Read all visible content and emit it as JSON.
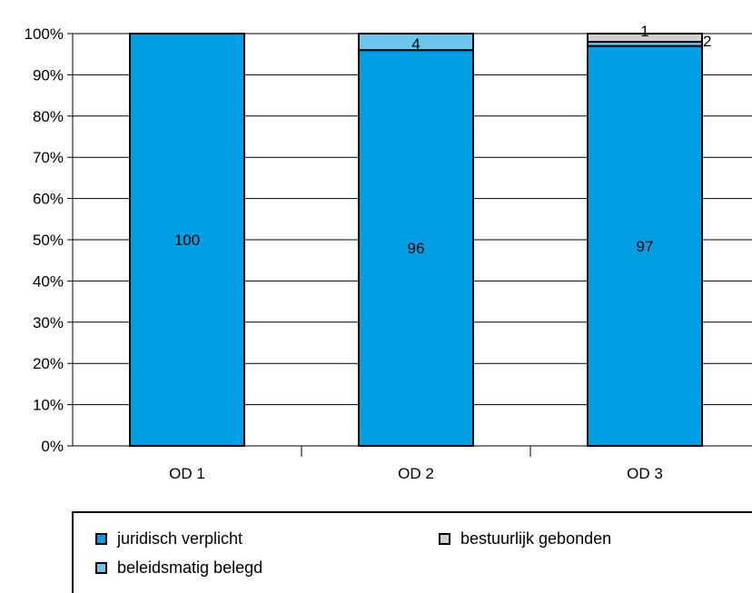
{
  "chart_data": {
    "type": "bar",
    "stacked": true,
    "categories": [
      "OD 1",
      "OD 2",
      "OD 3"
    ],
    "series": [
      {
        "name": "juridisch verplicht",
        "values": [
          100,
          96,
          97
        ],
        "color": "#009fe3"
      },
      {
        "name": "beleidsmatig belegd",
        "values": [
          0,
          4,
          1
        ],
        "color": "#6ec6ee"
      },
      {
        "name": "bestuurlijk gebonden",
        "values": [
          0,
          0,
          2
        ],
        "color": "#d0d0d0"
      }
    ],
    "data_labels": [
      {
        "category": "OD 1",
        "series": "juridisch verplicht",
        "text": "100"
      },
      {
        "category": "OD 2",
        "series": "juridisch verplicht",
        "text": "96"
      },
      {
        "category": "OD 2",
        "series": "beleidsmatig belegd",
        "text": "4"
      },
      {
        "category": "OD 3",
        "series": "juridisch verplicht",
        "text": "97"
      },
      {
        "category": "OD 3",
        "series": "beleidsmatig belegd",
        "text": "1"
      },
      {
        "category": "OD 3",
        "series": "bestuurlijk gebonden",
        "text": "2"
      }
    ],
    "y_ticks": [
      "0%",
      "10%",
      "20%",
      "30%",
      "40%",
      "50%",
      "60%",
      "70%",
      "80%",
      "90%",
      "100%"
    ],
    "ylim": [
      0,
      100
    ],
    "grid": true,
    "legend_position": "bottom",
    "title": "",
    "xlabel": "",
    "ylabel": ""
  },
  "legend": {
    "items": [
      {
        "label": "juridisch verplicht",
        "color": "#009fe3"
      },
      {
        "label": "bestuurlijk gebonden",
        "color": "#d0d0d0"
      },
      {
        "label": "beleidsmatig belegd",
        "color": "#6ec6ee"
      }
    ]
  }
}
